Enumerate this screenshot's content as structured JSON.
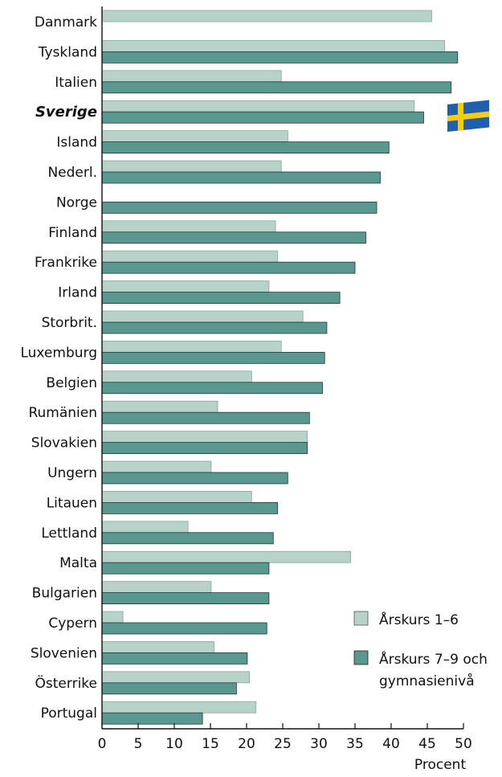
{
  "chart_data": {
    "type": "bar",
    "orientation": "horizontal",
    "categories": [
      "Danmark",
      "Tyskland",
      "Italien",
      "Sverige",
      "Island",
      "Nederl.",
      "Norge",
      "Finland",
      "Frankrike",
      "Irland",
      "Storbrit.",
      "Luxemburg",
      "Belgien",
      "Rumänien",
      "Slovakien",
      "Ungern",
      "Litauen",
      "Lettland",
      "Malta",
      "Bulgarien",
      "Cypern",
      "Slovenien",
      "Österrike",
      "Portugal"
    ],
    "highlight_category": "Sverige",
    "series": [
      {
        "name": "Årskurs 1–6",
        "color": "#b7d3c9",
        "values": [
          45.6,
          47.4,
          24.8,
          43.2,
          25.7,
          24.8,
          null,
          24.0,
          24.3,
          23.1,
          27.8,
          24.8,
          20.7,
          16.0,
          28.4,
          15.1,
          20.7,
          11.9,
          34.4,
          15.1,
          2.9,
          15.5,
          20.4,
          21.3
        ]
      },
      {
        "name": "Årskurs 7–9 och gymnasienivå",
        "color": "#5a978e",
        "values": [
          null,
          49.2,
          48.3,
          44.5,
          39.7,
          38.5,
          38.0,
          36.5,
          35.0,
          32.9,
          31.1,
          30.8,
          30.5,
          28.7,
          28.4,
          25.7,
          24.3,
          23.7,
          23.1,
          23.1,
          22.8,
          20.1,
          18.6,
          13.9
        ]
      }
    ],
    "xlim": [
      0,
      50
    ],
    "xticks": [
      0,
      5,
      10,
      15,
      20,
      25,
      30,
      35,
      40,
      45,
      50
    ],
    "xlabel": "Procent",
    "ylabel": "",
    "grid": false,
    "legend_placement": "bottom-right",
    "legend": [
      "Årskurs 1–6",
      "Årskurs 7–9 och",
      "gymnasienivå"
    ],
    "annotation_icon": "swedish-flag-icon"
  }
}
